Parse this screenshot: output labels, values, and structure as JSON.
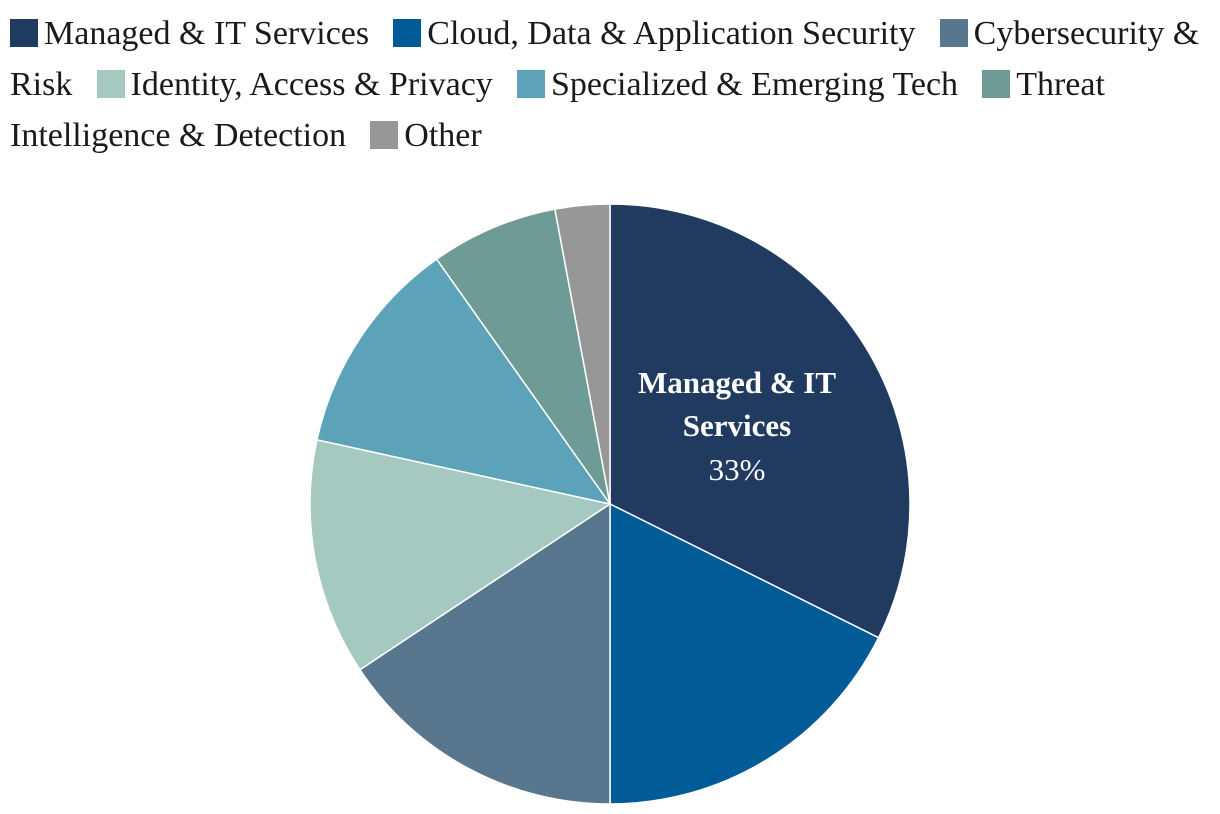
{
  "chart_data": {
    "type": "pie",
    "title": "",
    "slices": [
      {
        "label": "Managed & IT Services",
        "value": 33,
        "color": "#213a5f"
      },
      {
        "label": "Cloud, Data & Application Security",
        "value": 18,
        "color": "#005b96"
      },
      {
        "label": "Cybersecurity & Risk",
        "value": 16,
        "color": "#58778f"
      },
      {
        "label": "Identity, Access & Privacy",
        "value": 13,
        "color": "#a5c8c1"
      },
      {
        "label": "Specialized & Emerging Tech",
        "value": 12,
        "color": "#5ca2b8"
      },
      {
        "label": "Threat Intelligence & Detection",
        "value": 7,
        "color": "#6f9b96"
      },
      {
        "label": "Other",
        "value": 3,
        "color": "#979797"
      }
    ],
    "data_labels": [
      {
        "slice": "Managed & IT Services",
        "name_lines": [
          "Managed & IT",
          "Services"
        ],
        "value_text": "33%"
      }
    ],
    "legend_position": "top"
  }
}
